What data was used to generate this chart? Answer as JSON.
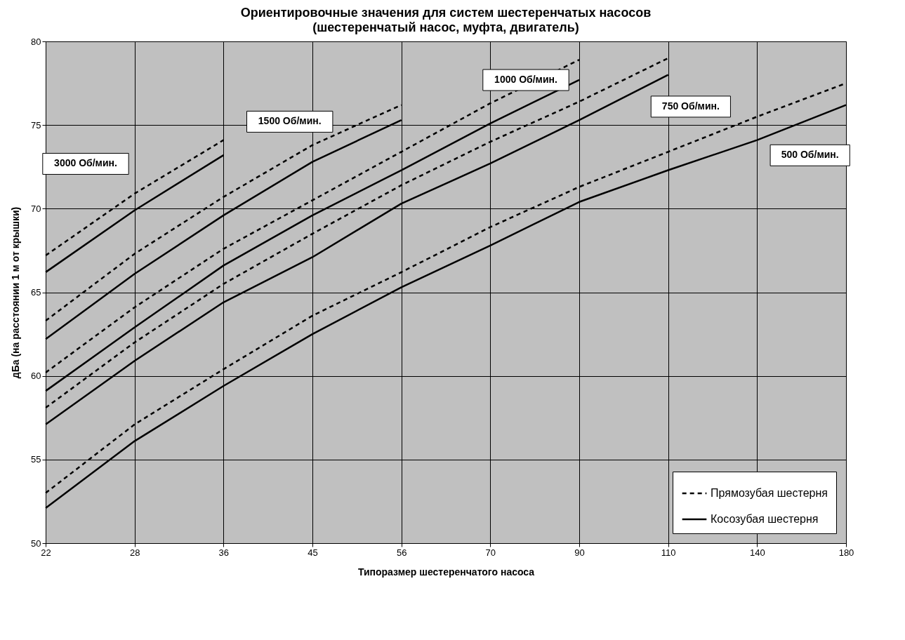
{
  "chart_data": {
    "type": "line",
    "title": "Ориентировочные значения для систем шестеренчатых насосов",
    "subtitle": "(шестеренчатый насос, муфта, двигатель)",
    "xlabel": "Типоразмер шестеренчатого насоса",
    "ylabel": "дБа (на расстоянии 1 м от крышки)",
    "categories": [
      "22",
      "28",
      "36",
      "45",
      "56",
      "70",
      "90",
      "110",
      "140",
      "180"
    ],
    "ylim": [
      50,
      80
    ],
    "yticks": [
      50,
      55,
      60,
      65,
      70,
      75,
      80
    ],
    "grid": true,
    "legend": "bottom right",
    "series": [
      {
        "name": "Прямозубая шестерня",
        "color": "#000000",
        "line_style": "dashed",
        "values": [
          67.2,
          70.9,
          74.1,
          null,
          null,
          null,
          null,
          null,
          null,
          null
        ]
      },
      {
        "name": "Косозубая шестерня",
        "color": "#000000",
        "line_style": "solid",
        "values": [
          66.2,
          69.9,
          73.2,
          null,
          null,
          null,
          null,
          null,
          null,
          null
        ]
      },
      {
        "color": "#000000",
        "line_style": "dashed",
        "values": [
          63.3,
          67.3,
          70.7,
          73.8,
          76.2,
          null,
          null,
          null,
          null,
          null
        ]
      },
      {
        "color": "#000000",
        "line_style": "solid",
        "values": [
          62.2,
          66.1,
          69.6,
          72.8,
          75.3,
          null,
          null,
          null,
          null,
          null
        ]
      },
      {
        "color": "#000000",
        "line_style": "dashed",
        "values": [
          60.2,
          64.1,
          67.6,
          70.5,
          73.4,
          76.3,
          78.9,
          null,
          null,
          null
        ]
      },
      {
        "color": "#000000",
        "line_style": "solid",
        "values": [
          59.1,
          62.9,
          66.6,
          69.6,
          72.3,
          75.1,
          77.7,
          null,
          null,
          null
        ]
      },
      {
        "color": "#000000",
        "line_style": "dashed",
        "values": [
          58.1,
          62.0,
          65.5,
          68.5,
          71.4,
          74.0,
          76.4,
          79.0,
          null,
          null
        ]
      },
      {
        "color": "#000000",
        "line_style": "solid",
        "values": [
          57.1,
          60.9,
          64.4,
          67.1,
          70.3,
          72.7,
          75.3,
          78.0,
          null,
          null
        ]
      },
      {
        "color": "#000000",
        "line_style": "dashed",
        "values": [
          53.0,
          57.1,
          60.4,
          63.6,
          66.2,
          68.9,
          71.3,
          73.4,
          75.5,
          77.5
        ]
      },
      {
        "color": "#000000",
        "line_style": "solid",
        "values": [
          52.1,
          56.1,
          59.4,
          62.5,
          65.3,
          67.8,
          70.4,
          72.3,
          74.1,
          76.2
        ]
      }
    ],
    "annotations": [
      "3000 Об/мин.",
      "1500 Об/мин.",
      "1000 Об/мин.",
      "750 Об/мин.",
      "500 Об/мин."
    ]
  }
}
